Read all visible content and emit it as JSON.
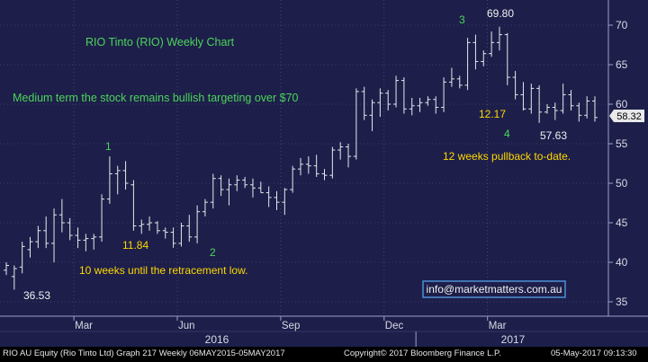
{
  "chart_data": {
    "type": "ohlc",
    "title": "RIO Tinto (RIO) Weekly Chart",
    "ylim": [
      33,
      73
    ],
    "y_ticks": [
      35,
      40,
      45,
      50,
      55,
      60,
      65,
      70
    ],
    "x_month_labels": [
      "Mar",
      "Jun",
      "Sep",
      "Dec",
      "Mar"
    ],
    "x_year_labels": [
      "2016",
      "2017"
    ],
    "last_price": "58.32",
    "colors": {
      "background": "#1d1f4a",
      "bars": "#e8e8ea",
      "green_text": "#4cd45a",
      "yellow_text": "#ffd700",
      "gridline": "#5c5f88"
    },
    "bars": [
      {
        "o": 39.0,
        "h": 40.0,
        "l": 38.4,
        "c": 39.6
      },
      {
        "o": 38.2,
        "h": 39.6,
        "l": 36.53,
        "c": 39.2
      },
      {
        "o": 39.4,
        "h": 42.6,
        "l": 38.6,
        "c": 42.0
      },
      {
        "o": 41.6,
        "h": 43.2,
        "l": 40.6,
        "c": 42.6
      },
      {
        "o": 42.6,
        "h": 44.6,
        "l": 41.8,
        "c": 44.0
      },
      {
        "o": 44.0,
        "h": 45.8,
        "l": 41.8,
        "c": 42.4
      },
      {
        "o": 42.4,
        "h": 46.8,
        "l": 40.0,
        "c": 46.0
      },
      {
        "o": 46.0,
        "h": 48.0,
        "l": 43.8,
        "c": 45.0
      },
      {
        "o": 45.0,
        "h": 45.6,
        "l": 42.8,
        "c": 43.4
      },
      {
        "o": 43.4,
        "h": 44.4,
        "l": 41.8,
        "c": 42.8
      },
      {
        "o": 42.8,
        "h": 43.6,
        "l": 41.4,
        "c": 43.0
      },
      {
        "o": 43.0,
        "h": 43.6,
        "l": 41.6,
        "c": 43.2
      },
      {
        "o": 43.2,
        "h": 48.6,
        "l": 42.6,
        "c": 48.0
      },
      {
        "o": 48.0,
        "h": 53.4,
        "l": 47.4,
        "c": 51.2
      },
      {
        "o": 51.2,
        "h": 52.2,
        "l": 48.6,
        "c": 51.6
      },
      {
        "o": 51.6,
        "h": 52.8,
        "l": 49.2,
        "c": 50.0
      },
      {
        "o": 49.8,
        "h": 50.4,
        "l": 44.0,
        "c": 44.6
      },
      {
        "o": 44.6,
        "h": 45.4,
        "l": 43.6,
        "c": 44.8
      },
      {
        "o": 44.8,
        "h": 45.8,
        "l": 44.0,
        "c": 45.0
      },
      {
        "o": 45.0,
        "h": 45.2,
        "l": 43.6,
        "c": 44.0
      },
      {
        "o": 44.0,
        "h": 44.4,
        "l": 43.0,
        "c": 43.8
      },
      {
        "o": 43.8,
        "h": 44.4,
        "l": 41.84,
        "c": 42.4
      },
      {
        "o": 42.4,
        "h": 45.0,
        "l": 42.0,
        "c": 44.6
      },
      {
        "o": 44.6,
        "h": 46.0,
        "l": 42.6,
        "c": 43.2
      },
      {
        "o": 43.2,
        "h": 47.2,
        "l": 42.4,
        "c": 46.4
      },
      {
        "o": 46.4,
        "h": 48.0,
        "l": 45.8,
        "c": 47.6
      },
      {
        "o": 47.6,
        "h": 51.2,
        "l": 46.8,
        "c": 50.6
      },
      {
        "o": 50.6,
        "h": 51.0,
        "l": 48.4,
        "c": 49.2
      },
      {
        "o": 49.2,
        "h": 50.6,
        "l": 47.2,
        "c": 49.8
      },
      {
        "o": 49.8,
        "h": 51.0,
        "l": 49.0,
        "c": 50.4
      },
      {
        "o": 50.4,
        "h": 50.8,
        "l": 49.4,
        "c": 49.8
      },
      {
        "o": 49.8,
        "h": 50.6,
        "l": 48.2,
        "c": 49.4
      },
      {
        "o": 49.4,
        "h": 50.2,
        "l": 48.8,
        "c": 48.8
      },
      {
        "o": 48.8,
        "h": 49.6,
        "l": 47.0,
        "c": 48.2
      },
      {
        "o": 48.2,
        "h": 49.0,
        "l": 46.6,
        "c": 47.6
      },
      {
        "o": 47.6,
        "h": 49.4,
        "l": 46.0,
        "c": 49.2
      },
      {
        "o": 49.2,
        "h": 52.2,
        "l": 48.8,
        "c": 51.8
      },
      {
        "o": 51.8,
        "h": 53.2,
        "l": 51.0,
        "c": 52.4
      },
      {
        "o": 52.4,
        "h": 53.4,
        "l": 51.2,
        "c": 52.2
      },
      {
        "o": 52.2,
        "h": 53.6,
        "l": 50.8,
        "c": 51.2
      },
      {
        "o": 51.2,
        "h": 51.8,
        "l": 50.4,
        "c": 51.0
      },
      {
        "o": 51.0,
        "h": 54.6,
        "l": 50.6,
        "c": 54.2
      },
      {
        "o": 54.2,
        "h": 55.2,
        "l": 53.0,
        "c": 54.6
      },
      {
        "o": 54.6,
        "h": 55.0,
        "l": 52.0,
        "c": 53.4
      },
      {
        "o": 53.4,
        "h": 62.0,
        "l": 53.0,
        "c": 61.6
      },
      {
        "o": 61.6,
        "h": 62.2,
        "l": 58.0,
        "c": 58.6
      },
      {
        "o": 58.6,
        "h": 60.6,
        "l": 56.6,
        "c": 60.2
      },
      {
        "o": 60.2,
        "h": 62.0,
        "l": 58.4,
        "c": 61.4
      },
      {
        "o": 61.4,
        "h": 61.8,
        "l": 59.2,
        "c": 60.0
      },
      {
        "o": 60.0,
        "h": 63.6,
        "l": 59.6,
        "c": 63.0
      },
      {
        "o": 63.0,
        "h": 63.4,
        "l": 58.8,
        "c": 59.4
      },
      {
        "o": 59.4,
        "h": 60.8,
        "l": 58.6,
        "c": 59.8
      },
      {
        "o": 59.8,
        "h": 60.8,
        "l": 59.0,
        "c": 60.2
      },
      {
        "o": 60.2,
        "h": 61.0,
        "l": 59.8,
        "c": 60.6
      },
      {
        "o": 60.6,
        "h": 61.0,
        "l": 58.8,
        "c": 59.6
      },
      {
        "o": 59.6,
        "h": 63.4,
        "l": 59.0,
        "c": 62.8
      },
      {
        "o": 62.8,
        "h": 64.6,
        "l": 62.2,
        "c": 63.2
      },
      {
        "o": 63.2,
        "h": 63.6,
        "l": 62.0,
        "c": 62.4
      },
      {
        "o": 62.4,
        "h": 68.4,
        "l": 61.8,
        "c": 67.8
      },
      {
        "o": 67.8,
        "h": 68.8,
        "l": 64.4,
        "c": 65.4
      },
      {
        "o": 65.4,
        "h": 66.8,
        "l": 64.8,
        "c": 66.4
      },
      {
        "o": 66.4,
        "h": 69.2,
        "l": 66.0,
        "c": 67.8
      },
      {
        "o": 67.8,
        "h": 69.8,
        "l": 66.8,
        "c": 68.8
      },
      {
        "o": 68.8,
        "h": 69.0,
        "l": 62.4,
        "c": 63.4
      },
      {
        "o": 63.4,
        "h": 64.2,
        "l": 60.6,
        "c": 61.2
      },
      {
        "o": 61.2,
        "h": 62.8,
        "l": 59.2,
        "c": 59.4
      },
      {
        "o": 59.4,
        "h": 62.6,
        "l": 58.8,
        "c": 62.0
      },
      {
        "o": 62.0,
        "h": 62.4,
        "l": 57.63,
        "c": 59.0
      },
      {
        "o": 59.0,
        "h": 60.0,
        "l": 58.8,
        "c": 59.6
      },
      {
        "o": 59.6,
        "h": 60.2,
        "l": 58.0,
        "c": 59.2
      },
      {
        "o": 59.2,
        "h": 62.6,
        "l": 58.8,
        "c": 61.2
      },
      {
        "o": 61.2,
        "h": 61.8,
        "l": 59.2,
        "c": 59.8
      },
      {
        "o": 59.8,
        "h": 60.2,
        "l": 57.8,
        "c": 58.6
      },
      {
        "o": 58.6,
        "h": 61.0,
        "l": 58.2,
        "c": 60.4
      },
      {
        "o": 60.4,
        "h": 61.0,
        "l": 57.8,
        "c": 58.32
      }
    ],
    "annotations": [
      {
        "text": "RIO Tinto (RIO) Weekly Chart",
        "color": "green"
      },
      {
        "text": "Medium term the stock remains bullish targeting over $70",
        "color": "green"
      },
      {
        "text": "1",
        "color": "green"
      },
      {
        "text": "2",
        "color": "green"
      },
      {
        "text": "3",
        "color": "green"
      },
      {
        "text": "4",
        "color": "green"
      },
      {
        "text": "69.80",
        "color": "white"
      },
      {
        "text": "12.17",
        "color": "yellow"
      },
      {
        "text": "57.63",
        "color": "white"
      },
      {
        "text": "12 weeks pullback to-date.",
        "color": "yellow"
      },
      {
        "text": "11.84",
        "color": "yellow"
      },
      {
        "text": "10 weeks until the retracement low.",
        "color": "yellow"
      },
      {
        "text": "36.53",
        "color": "white"
      },
      {
        "text": "info@marketmatters.com.au",
        "color": "white"
      }
    ]
  },
  "footer": {
    "left": "RIO AU Equity (Rio Tinto Ltd) Graph 217  Weekly 06MAY2015-05MAY2017",
    "center": "Copyright© 2017 Bloomberg Finance L.P.",
    "right": "05-May-2017 09:13:30"
  }
}
